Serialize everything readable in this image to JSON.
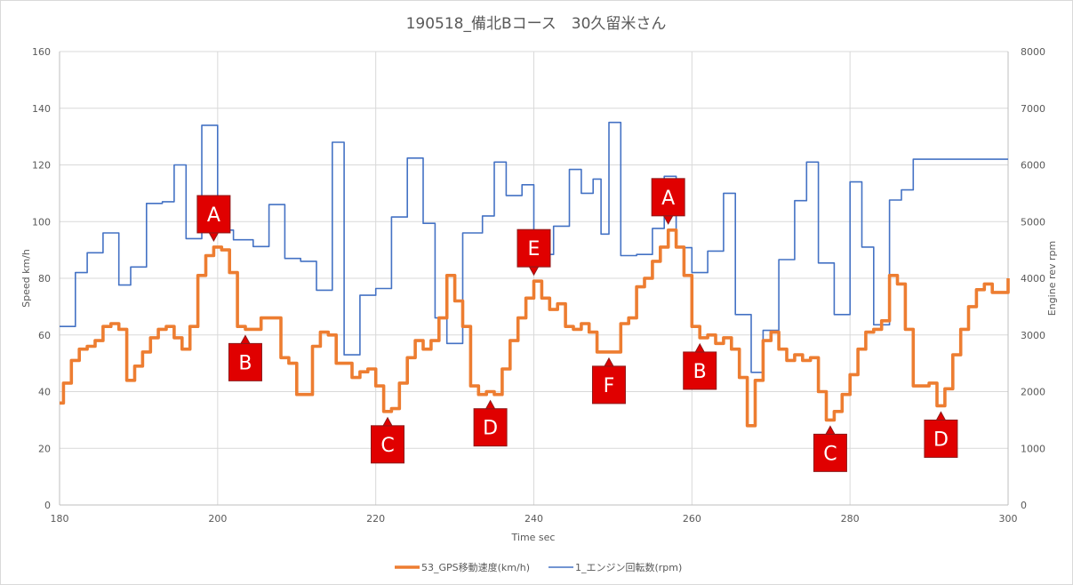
{
  "chart_data": {
    "type": "line",
    "title": "190518_備北Bコース　30久留米さん",
    "xlabel": "Time sec",
    "ylabel": "Speed km/h",
    "y2label": "Engine rev rpm",
    "xlim": [
      180,
      300
    ],
    "ylim": [
      0,
      160
    ],
    "y2lim": [
      0,
      8000
    ],
    "xticks": [
      "180",
      "200",
      "220",
      "240",
      "260",
      "280",
      "300"
    ],
    "yticks": [
      "0",
      "20",
      "40",
      "60",
      "80",
      "100",
      "120",
      "140",
      "160"
    ],
    "y2ticks": [
      "0",
      "1000",
      "2000",
      "3000",
      "4000",
      "5000",
      "6000",
      "7000",
      "8000"
    ],
    "grid": true,
    "legend": "bottom",
    "series": [
      {
        "name": "53_GPS移動速度(km/h)",
        "axis": "left",
        "color": "#ed7d31",
        "step": true,
        "points": [
          [
            180,
            36
          ],
          [
            180.5,
            43
          ],
          [
            181,
            43
          ],
          [
            181.5,
            51
          ],
          [
            182,
            51
          ],
          [
            182.5,
            55
          ],
          [
            183,
            55
          ],
          [
            183.5,
            56
          ],
          [
            184,
            56
          ],
          [
            184.5,
            58
          ],
          [
            185,
            58
          ],
          [
            185.5,
            63
          ],
          [
            186,
            63
          ],
          [
            186.5,
            64
          ],
          [
            187,
            64
          ],
          [
            187.5,
            62
          ],
          [
            188,
            62
          ],
          [
            188.5,
            44
          ],
          [
            189,
            44
          ],
          [
            189.5,
            49
          ],
          [
            190,
            49
          ],
          [
            190.5,
            54
          ],
          [
            191,
            54
          ],
          [
            191.5,
            59
          ],
          [
            192,
            59
          ],
          [
            192.5,
            62
          ],
          [
            193,
            62
          ],
          [
            193.5,
            63
          ],
          [
            194,
            63
          ],
          [
            194.5,
            59
          ],
          [
            195,
            59
          ],
          [
            195.5,
            55
          ],
          [
            196,
            55
          ],
          [
            196.5,
            63
          ],
          [
            197,
            63
          ],
          [
            197.5,
            81
          ],
          [
            198,
            81
          ],
          [
            198.5,
            88
          ],
          [
            199,
            88
          ],
          [
            199.5,
            91
          ],
          [
            200,
            91
          ],
          [
            200.5,
            90
          ],
          [
            201,
            90
          ],
          [
            201.5,
            82
          ],
          [
            202,
            82
          ],
          [
            202.5,
            63
          ],
          [
            203,
            63
          ],
          [
            203.5,
            62
          ],
          [
            204,
            62
          ],
          [
            204.5,
            62
          ],
          [
            205,
            62
          ],
          [
            205.5,
            66
          ],
          [
            206,
            66
          ],
          [
            206.5,
            66
          ],
          [
            207,
            66
          ],
          [
            207.5,
            66
          ],
          [
            208,
            52
          ],
          [
            208.5,
            52
          ],
          [
            209,
            50
          ],
          [
            209.5,
            50
          ],
          [
            210,
            39
          ],
          [
            210.5,
            39
          ],
          [
            211,
            39
          ],
          [
            211.5,
            39
          ],
          [
            212,
            56
          ],
          [
            212.5,
            56
          ],
          [
            213,
            61
          ],
          [
            213.5,
            61
          ],
          [
            214,
            60
          ],
          [
            214.5,
            60
          ],
          [
            215,
            50
          ],
          [
            215.5,
            50
          ],
          [
            216,
            50
          ],
          [
            216.5,
            50
          ],
          [
            217,
            45
          ],
          [
            217.5,
            45
          ],
          [
            218,
            47
          ],
          [
            218.5,
            47
          ],
          [
            219,
            48
          ],
          [
            219.5,
            48
          ],
          [
            220,
            42
          ],
          [
            220.5,
            42
          ],
          [
            221,
            33
          ],
          [
            221.5,
            33
          ],
          [
            222,
            34
          ],
          [
            222.5,
            34
          ],
          [
            223,
            43
          ],
          [
            223.5,
            43
          ],
          [
            224,
            52
          ],
          [
            224.5,
            52
          ],
          [
            225,
            58
          ],
          [
            225.5,
            58
          ],
          [
            226,
            55
          ],
          [
            226.5,
            55
          ],
          [
            227,
            58
          ],
          [
            227.5,
            58
          ],
          [
            228,
            66
          ],
          [
            228.5,
            66
          ],
          [
            229,
            81
          ],
          [
            229.5,
            81
          ],
          [
            230,
            72
          ],
          [
            230.5,
            72
          ],
          [
            231,
            63
          ],
          [
            231.5,
            63
          ],
          [
            232,
            42
          ],
          [
            232.5,
            42
          ],
          [
            233,
            39
          ],
          [
            233.5,
            39
          ],
          [
            234,
            40
          ],
          [
            234.5,
            40
          ],
          [
            235,
            39
          ],
          [
            235.5,
            39
          ],
          [
            236,
            48
          ],
          [
            236.5,
            48
          ],
          [
            237,
            58
          ],
          [
            237.5,
            58
          ],
          [
            238,
            66
          ],
          [
            238.5,
            66
          ],
          [
            239,
            73
          ],
          [
            239.5,
            73
          ],
          [
            240,
            79
          ],
          [
            240.5,
            79
          ],
          [
            241,
            73
          ],
          [
            241.5,
            73
          ],
          [
            242,
            69
          ],
          [
            242.5,
            69
          ],
          [
            243,
            71
          ],
          [
            243.5,
            71
          ],
          [
            244,
            63
          ],
          [
            244.5,
            63
          ],
          [
            245,
            62
          ],
          [
            245.5,
            62
          ],
          [
            246,
            64
          ],
          [
            246.5,
            64
          ],
          [
            247,
            61
          ],
          [
            247.5,
            61
          ],
          [
            248,
            54
          ],
          [
            248.5,
            54
          ],
          [
            249,
            54
          ],
          [
            249.5,
            54
          ],
          [
            250,
            54
          ],
          [
            250.5,
            54
          ],
          [
            251,
            64
          ],
          [
            251.5,
            64
          ],
          [
            252,
            66
          ],
          [
            252.5,
            66
          ],
          [
            253,
            77
          ],
          [
            253.5,
            77
          ],
          [
            254,
            80
          ],
          [
            254.5,
            80
          ],
          [
            255,
            86
          ],
          [
            255.5,
            86
          ],
          [
            256,
            91
          ],
          [
            256.5,
            91
          ],
          [
            257,
            97
          ],
          [
            257.5,
            97
          ],
          [
            258,
            91
          ],
          [
            258.5,
            91
          ],
          [
            259,
            81
          ],
          [
            259.5,
            81
          ],
          [
            260,
            63
          ],
          [
            260.5,
            63
          ],
          [
            261,
            59
          ],
          [
            261.5,
            59
          ],
          [
            262,
            60
          ],
          [
            262.5,
            60
          ],
          [
            263,
            57
          ],
          [
            263.5,
            57
          ],
          [
            264,
            59
          ],
          [
            264.5,
            59
          ],
          [
            265,
            55
          ],
          [
            265.5,
            55
          ],
          [
            266,
            45
          ],
          [
            266.5,
            45
          ],
          [
            267,
            28
          ],
          [
            267.5,
            28
          ],
          [
            268,
            44
          ],
          [
            268.5,
            44
          ],
          [
            269,
            58
          ],
          [
            269.5,
            58
          ],
          [
            270,
            61
          ],
          [
            270.5,
            61
          ],
          [
            271,
            55
          ],
          [
            271.5,
            55
          ],
          [
            272,
            51
          ],
          [
            272.5,
            51
          ],
          [
            273,
            53
          ],
          [
            273.5,
            53
          ],
          [
            274,
            51
          ],
          [
            274.5,
            51
          ],
          [
            275,
            52
          ],
          [
            275.5,
            52
          ],
          [
            276,
            40
          ],
          [
            276.5,
            40
          ],
          [
            277,
            30
          ],
          [
            277.5,
            30
          ],
          [
            278,
            33
          ],
          [
            278.5,
            33
          ],
          [
            279,
            39
          ],
          [
            279.5,
            39
          ],
          [
            280,
            46
          ],
          [
            280.5,
            46
          ],
          [
            281,
            55
          ],
          [
            281.5,
            55
          ],
          [
            282,
            61
          ],
          [
            282.5,
            61
          ],
          [
            283,
            62
          ],
          [
            283.5,
            62
          ],
          [
            284,
            65
          ],
          [
            284.5,
            65
          ],
          [
            285,
            81
          ],
          [
            285.5,
            81
          ],
          [
            286,
            78
          ],
          [
            286.5,
            78
          ],
          [
            287,
            62
          ],
          [
            287.5,
            62
          ],
          [
            288,
            42
          ],
          [
            288.5,
            42
          ],
          [
            289,
            42
          ],
          [
            289.5,
            42
          ],
          [
            290,
            43
          ],
          [
            290.5,
            43
          ],
          [
            291,
            35
          ],
          [
            291.5,
            35
          ],
          [
            292,
            41
          ],
          [
            292.5,
            41
          ],
          [
            293,
            53
          ],
          [
            293.5,
            53
          ],
          [
            294,
            62
          ],
          [
            294.5,
            62
          ],
          [
            295,
            70
          ],
          [
            295.5,
            70
          ],
          [
            296,
            76
          ],
          [
            296.5,
            76
          ],
          [
            297,
            78
          ],
          [
            297.5,
            78
          ],
          [
            298,
            75
          ],
          [
            298.5,
            75
          ],
          [
            299,
            75
          ],
          [
            299.5,
            75
          ],
          [
            300,
            80
          ]
        ]
      },
      {
        "name": "1_エンジン回転数(rpm)",
        "axis": "right",
        "color": "#4472c4",
        "step": true,
        "points": [
          [
            180,
            3150
          ],
          [
            182,
            4100
          ],
          [
            183.5,
            4450
          ],
          [
            185.5,
            4800
          ],
          [
            187.5,
            3880
          ],
          [
            189,
            4200
          ],
          [
            191,
            5320
          ],
          [
            193,
            5350
          ],
          [
            194.5,
            6000
          ],
          [
            196,
            4700
          ],
          [
            198,
            6700
          ],
          [
            200,
            4850
          ],
          [
            202,
            4680
          ],
          [
            204.5,
            4560
          ],
          [
            206.5,
            5300
          ],
          [
            208.5,
            4350
          ],
          [
            210.5,
            4300
          ],
          [
            212.5,
            3790
          ],
          [
            214.5,
            6400
          ],
          [
            216,
            2650
          ],
          [
            218,
            3700
          ],
          [
            220,
            3820
          ],
          [
            222,
            5080
          ],
          [
            224,
            6120
          ],
          [
            226,
            4970
          ],
          [
            227.5,
            3300
          ],
          [
            229,
            2850
          ],
          [
            231,
            4800
          ],
          [
            233.5,
            5100
          ],
          [
            235,
            6050
          ],
          [
            236.5,
            5460
          ],
          [
            238.5,
            5650
          ],
          [
            240,
            4420
          ],
          [
            242.5,
            4920
          ],
          [
            244.5,
            5920
          ],
          [
            246,
            5500
          ],
          [
            247.5,
            5750
          ],
          [
            248.5,
            4780
          ],
          [
            249.5,
            6750
          ],
          [
            251,
            4400
          ],
          [
            253,
            4420
          ],
          [
            255,
            4880
          ],
          [
            256.5,
            5800
          ],
          [
            258,
            4540
          ],
          [
            260,
            4100
          ],
          [
            262,
            4480
          ],
          [
            264,
            5500
          ],
          [
            265.5,
            3360
          ],
          [
            267.5,
            2340
          ],
          [
            269,
            3080
          ],
          [
            271,
            4330
          ],
          [
            273,
            5370
          ],
          [
            274.5,
            6050
          ],
          [
            276,
            4270
          ],
          [
            278,
            3360
          ],
          [
            280,
            5700
          ],
          [
            281.5,
            4550
          ],
          [
            283,
            3180
          ],
          [
            285,
            5380
          ],
          [
            286.5,
            5560
          ],
          [
            288,
            6100
          ],
          [
            300,
            6100
          ]
        ]
      }
    ],
    "annotations": [
      {
        "label": "A",
        "x": 199.5,
        "y": 91
      },
      {
        "label": "B",
        "x": 203.5,
        "y": 62
      },
      {
        "label": "C",
        "x": 221.5,
        "y": 33
      },
      {
        "label": "D",
        "x": 234.5,
        "y": 39
      },
      {
        "label": "E",
        "x": 240,
        "y": 79
      },
      {
        "label": "F",
        "x": 249.5,
        "y": 54
      },
      {
        "label": "A",
        "x": 257,
        "y": 97
      },
      {
        "label": "B",
        "x": 261,
        "y": 59
      },
      {
        "label": "C",
        "x": 277.5,
        "y": 30
      },
      {
        "label": "D",
        "x": 291.5,
        "y": 35
      }
    ]
  }
}
